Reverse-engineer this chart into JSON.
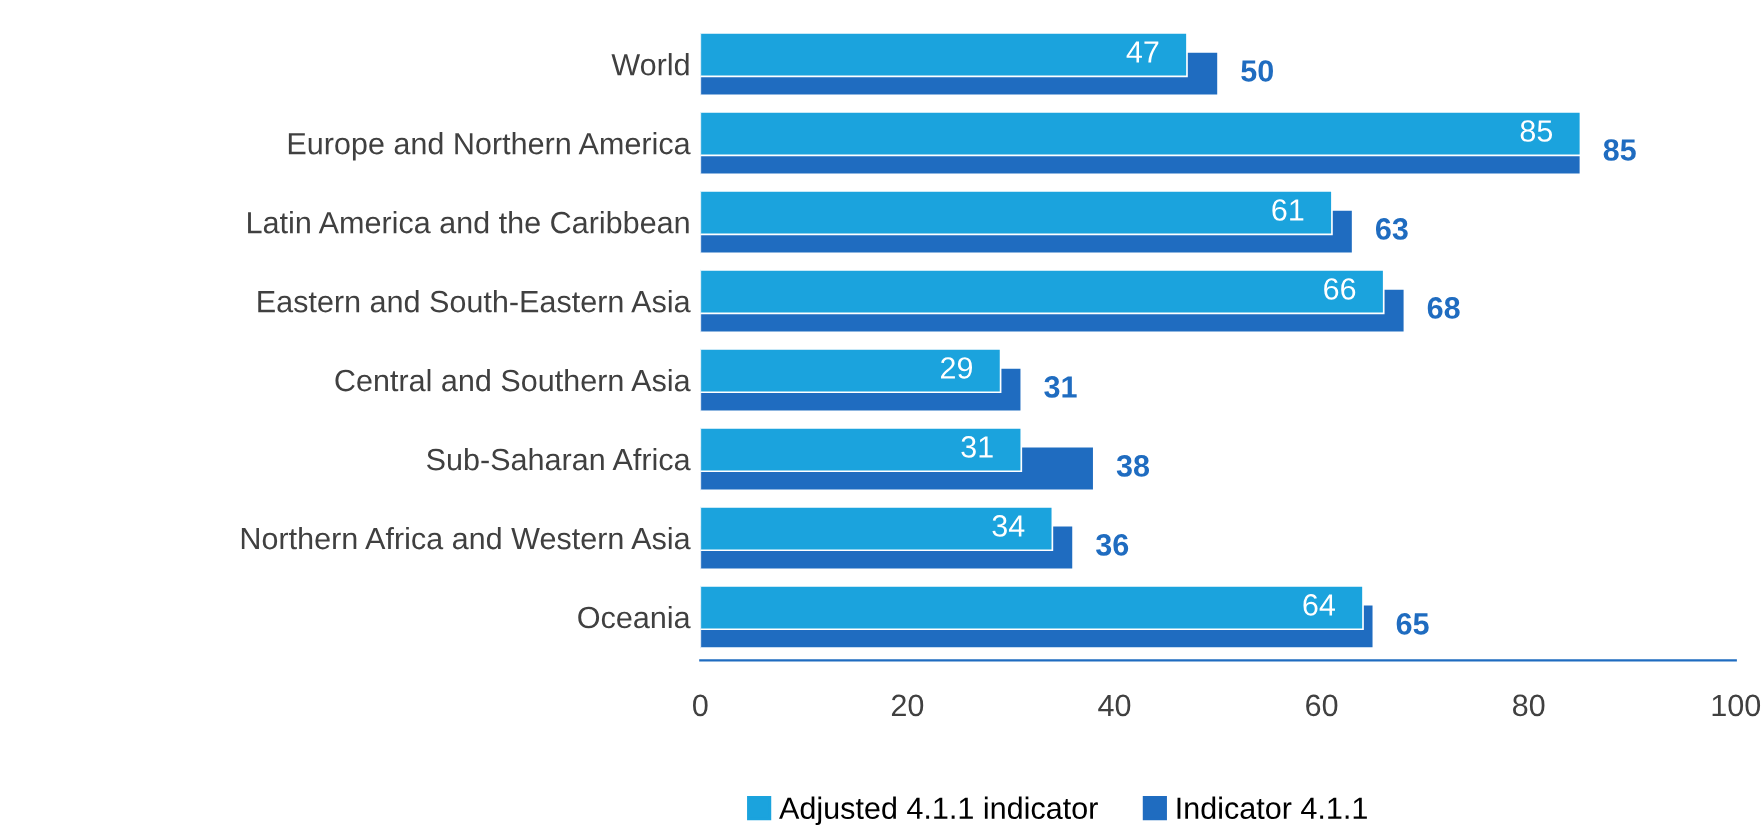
{
  "chart_data": {
    "type": "bar",
    "orientation": "horizontal",
    "categories": [
      "World",
      "Europe and Northern America",
      "Latin America and the Caribbean",
      "Eastern and South-Eastern Asia",
      "Central and Southern Asia",
      "Sub-Saharan Africa",
      "Northern Africa and Western Asia",
      "Oceania"
    ],
    "series": [
      {
        "name": "Adjusted 4.1.1 indicator",
        "color": "#1ba3dd",
        "values": [
          47,
          85,
          61,
          66,
          29,
          31,
          34,
          64
        ]
      },
      {
        "name": "Indicator 4.1.1",
        "color": "#1f6cc0",
        "values": [
          50,
          85,
          63,
          68,
          31,
          38,
          36,
          65
        ]
      }
    ],
    "xlim": [
      0,
      100
    ],
    "xticks": [
      0,
      20,
      40,
      60,
      80,
      100
    ],
    "data_labels": true,
    "grid": false,
    "legend": "bottom"
  }
}
